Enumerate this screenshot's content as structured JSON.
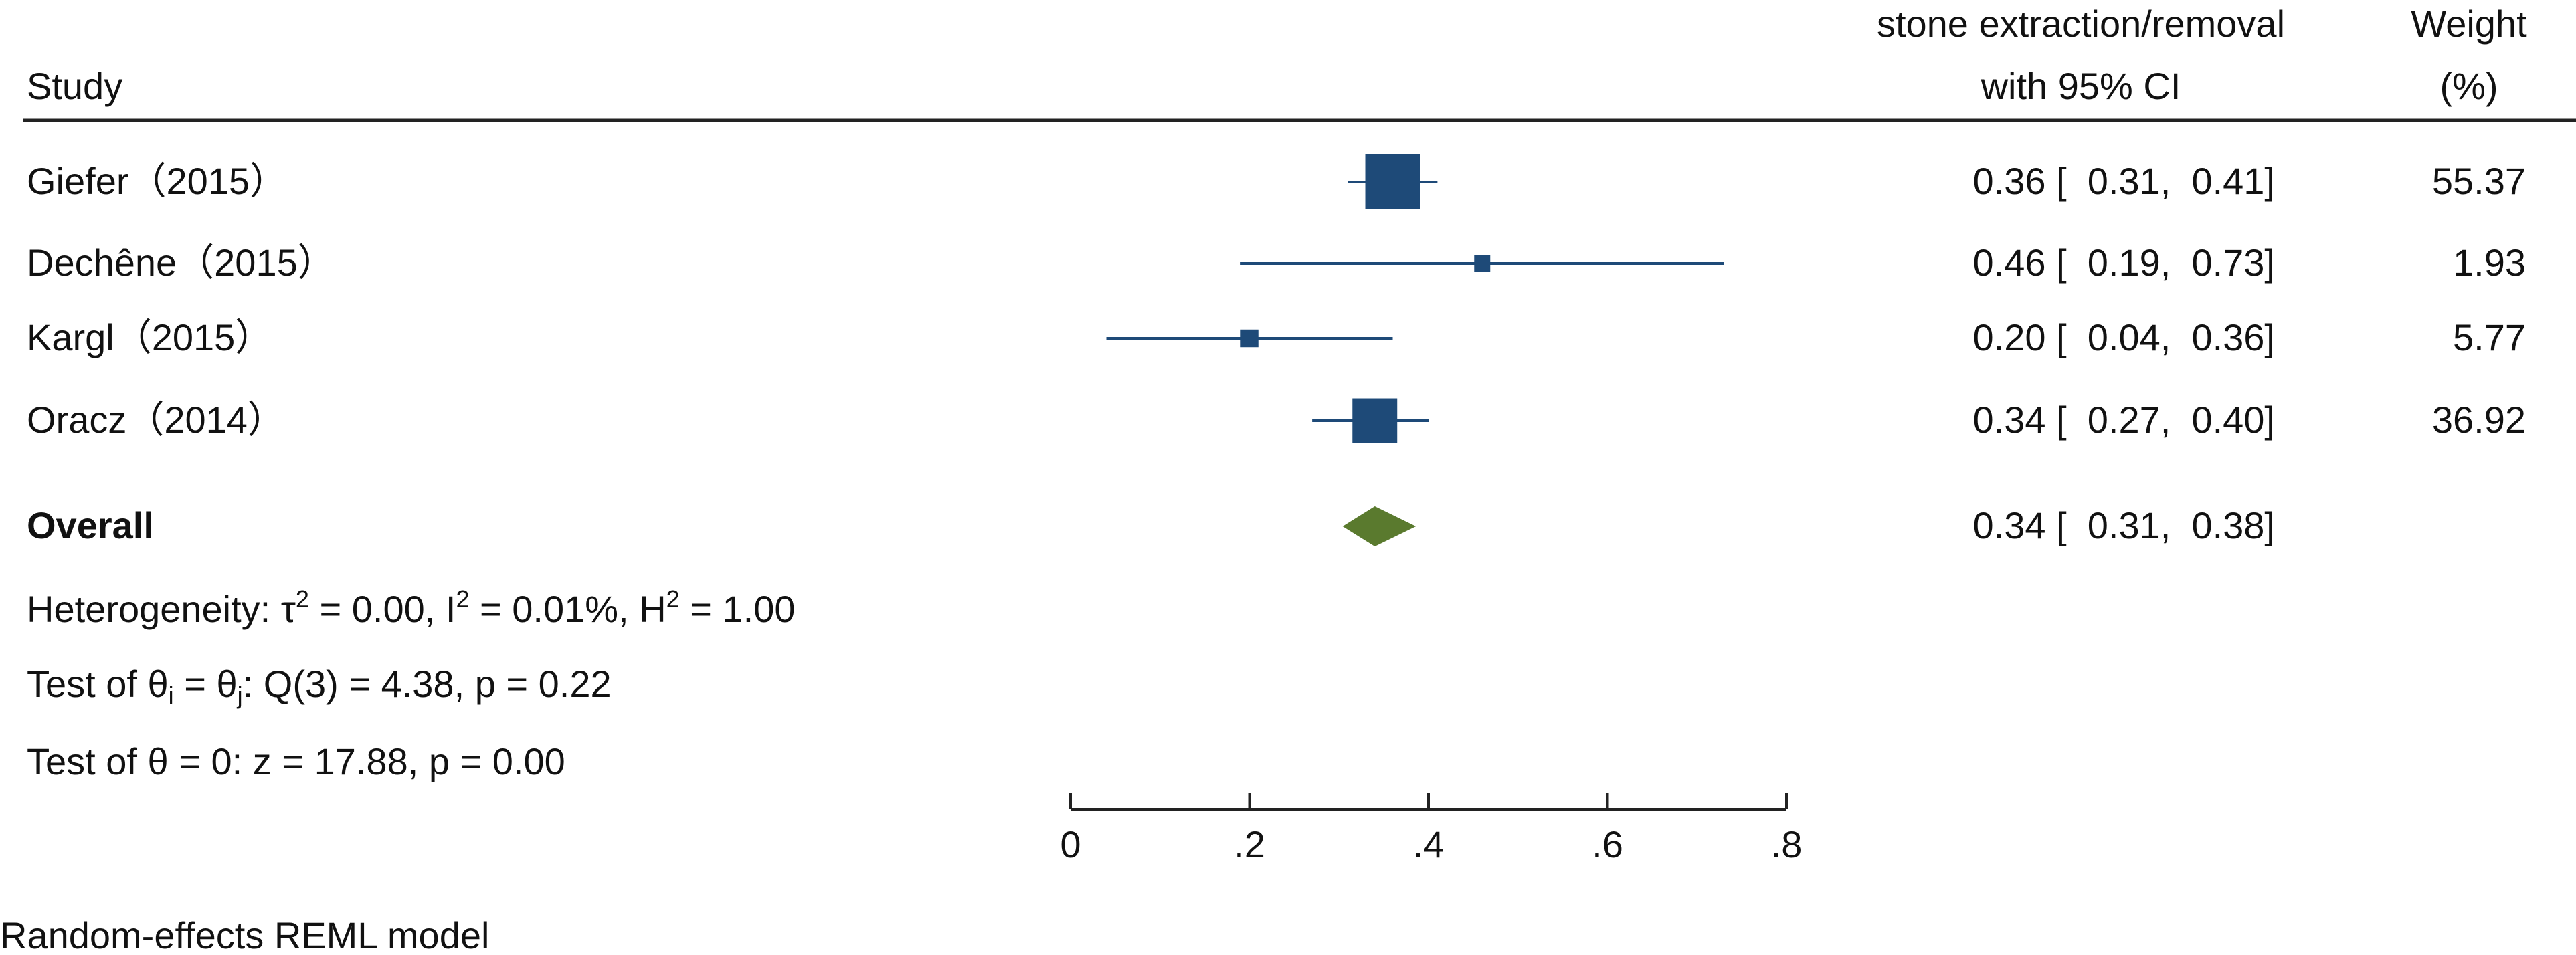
{
  "header": {
    "study_label": "Study",
    "effect_label_line1": "stone extraction/removal",
    "effect_label_line2": "with 95% CI",
    "weight_label_line1": "Weight",
    "weight_label_line2": "(%)"
  },
  "overall": {
    "label": "Overall",
    "effect_text": "0.34 [  0.31,  0.38]"
  },
  "stats": {
    "heterogeneity": {
      "prefix": "Heterogeneity: τ",
      "sup1": "2",
      "mid1": " = 0.00, I",
      "sup2": "2",
      "mid2": " = 0.01%, H",
      "sup3": "2",
      "end": " = 1.00"
    },
    "test_theta_ij": {
      "prefix": "Test of θ",
      "sub1": "i",
      "mid": " = θ",
      "sub2": "j",
      "end": ": Q(3) = 4.38, p = 0.22"
    },
    "test_theta_zero": "Test of θ = 0: z = 17.88, p = 0.00"
  },
  "footnote": "Random-effects REML model",
  "colors": {
    "marker": "#1e4a78",
    "diamond": "#5a7a2e",
    "text": "#111111",
    "rule": "#222222"
  },
  "chart_data": {
    "type": "forest",
    "axis": {
      "min": 0,
      "max": 0.8,
      "ticks": [
        0,
        0.2,
        0.4,
        0.6,
        0.8
      ],
      "tick_labels": [
        "0",
        ".2",
        ".4",
        ".6",
        ".8"
      ]
    },
    "studies": [
      {
        "name": "Giefer（2015）",
        "estimate": 0.36,
        "lower": 0.31,
        "upper": 0.41,
        "weight": 55.37,
        "effect_text": "0.36 [  0.31,  0.41]",
        "weight_text": "55.37"
      },
      {
        "name": "Dechêne（2015）",
        "estimate": 0.46,
        "lower": 0.19,
        "upper": 0.73,
        "weight": 1.93,
        "effect_text": "0.46 [  0.19,  0.73]",
        "weight_text": "1.93"
      },
      {
        "name": "Kargl（2015）",
        "estimate": 0.2,
        "lower": 0.04,
        "upper": 0.36,
        "weight": 5.77,
        "effect_text": "0.20 [  0.04,  0.36]",
        "weight_text": "5.77"
      },
      {
        "name": "Oracz（2014）",
        "estimate": 0.34,
        "lower": 0.27,
        "upper": 0.4,
        "weight": 36.92,
        "effect_text": "0.34 [  0.27,  0.40]",
        "weight_text": "36.92"
      }
    ],
    "overall": {
      "estimate": 0.34,
      "lower": 0.31,
      "upper": 0.38
    }
  }
}
